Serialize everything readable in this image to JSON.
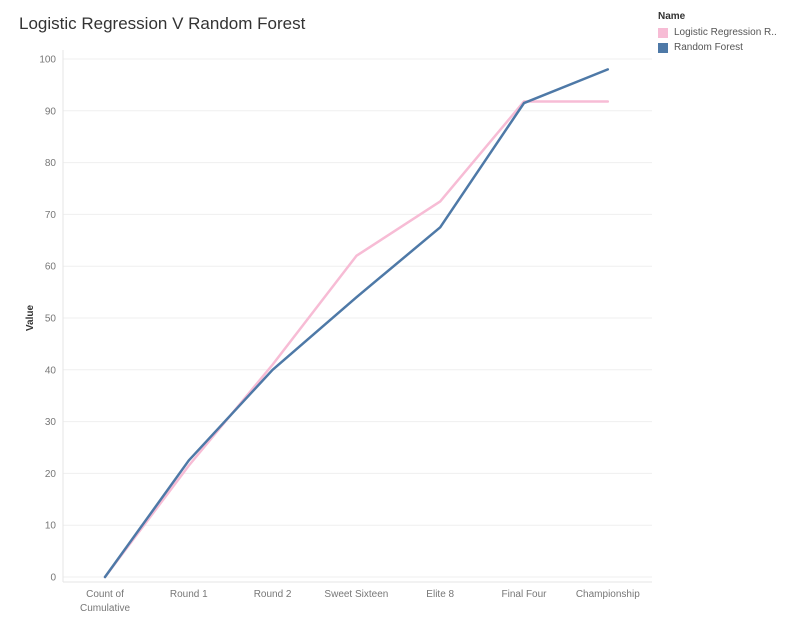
{
  "chart_data": {
    "type": "line",
    "title": "Logistic Regression V Random Forest",
    "xlabel": "",
    "ylabel": "Value",
    "categories": [
      [
        "Count of",
        "Cumulative"
      ],
      [
        "Round 1"
      ],
      [
        "Round 2"
      ],
      [
        "Sweet Sixteen"
      ],
      [
        "Elite 8"
      ],
      [
        "Final Four"
      ],
      [
        "Championship"
      ]
    ],
    "ylim": [
      0,
      100
    ],
    "yticks": [
      0,
      10,
      20,
      30,
      40,
      50,
      60,
      70,
      80,
      90,
      100
    ],
    "grid": true,
    "legend_position": "top-right",
    "legend_title": "Name",
    "series": [
      {
        "name": "Logistic Regression R..",
        "color": "#f7bcd5",
        "values": [
          0,
          21.5,
          41,
          62,
          72.5,
          91.8,
          91.8
        ]
      },
      {
        "name": "Random Forest",
        "color": "#4e79a7",
        "values": [
          0,
          22.5,
          40,
          54,
          67.5,
          91.5,
          98
        ]
      }
    ]
  }
}
